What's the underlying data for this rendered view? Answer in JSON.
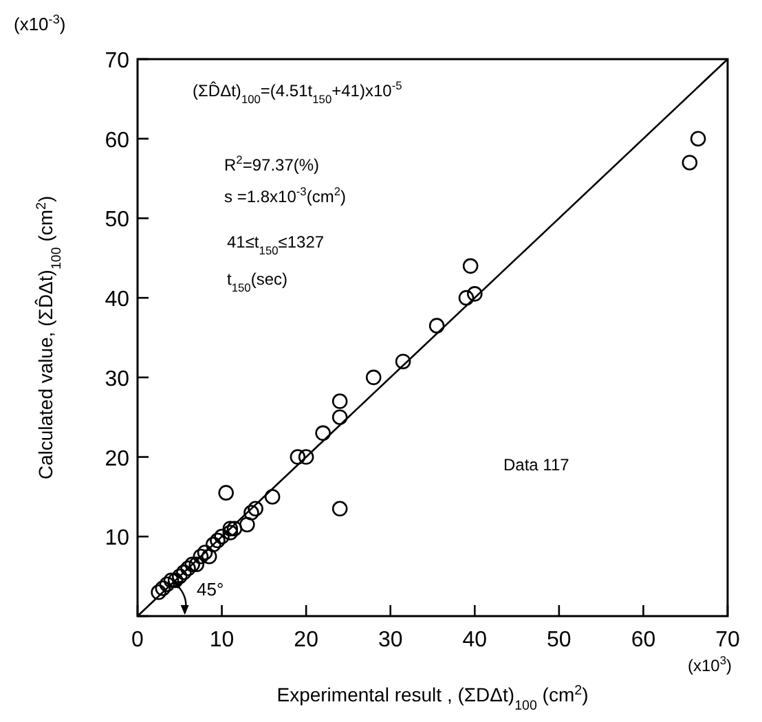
{
  "chart_data": {
    "type": "scatter",
    "xlabel": "Experimental result , (ΣDΔt)$_{100}$ (cm$^{2}$)",
    "ylabel": "Calculated value, (ΣD̂Δt)$_{100}$ (cm$^{2}$)",
    "xlim": [
      0,
      70
    ],
    "xticks": [
      0,
      10,
      20,
      30,
      40,
      50,
      60,
      70
    ],
    "ylim": [
      0,
      70
    ],
    "yticks": [
      {
        "value": 0,
        "label": null
      },
      10,
      20,
      30,
      40,
      50,
      60,
      70
    ],
    "grid": false,
    "marker": "circle",
    "series": [
      {
        "color": "#000000",
        "x": [
          2.5,
          3,
          3.5,
          4,
          4.5,
          5,
          5.5,
          6,
          6.5,
          7,
          7.5,
          8,
          8.5,
          9,
          9.5,
          10,
          10.5,
          11,
          11,
          11.5,
          13,
          13.5,
          14,
          16,
          19,
          20,
          22,
          24,
          24,
          24,
          28,
          31.5,
          35.5,
          39,
          39.5,
          40,
          65.5,
          66.5
        ],
        "values": [
          3,
          3.5,
          4,
          4.5,
          4.5,
          5,
          5.5,
          6,
          6.5,
          6.5,
          7.5,
          8,
          7.5,
          9,
          9.5,
          10,
          15.5,
          11,
          10.5,
          11,
          11.5,
          13,
          13.5,
          15,
          20,
          20,
          23,
          27,
          25,
          13.5,
          30,
          32,
          36.5,
          40,
          44,
          40.5,
          57,
          60
        ]
      },
      {
        "type": "line",
        "color": "#000000",
        "x": [
          0,
          70
        ],
        "values": [
          0,
          70
        ],
        "marker": "none",
        "line_style": "solid"
      }
    ],
    "annotations": [
      "(x10$^{-3}$)",
      "(x10$^{3}$)",
      "(ΣD̂Δt)$_{100}$=(4.51t$_{150}$+41)x10$^{-5}$",
      "R$^{2}$=97.37(%)",
      "s  =1.8x10$^{-3}$(cm$^{2}$)",
      "41≤t$_{150}$≤1327",
      "t$_{150}$(sec)",
      "Data 117",
      "45°"
    ]
  }
}
